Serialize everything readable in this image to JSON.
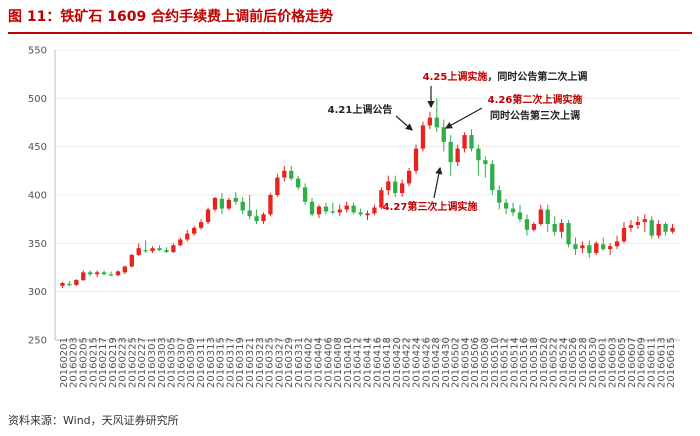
{
  "figure": {
    "title": "图 11：铁矿石 1609 合约手续费上调前后价格走势",
    "source": "资料来源：Wind，天风证券研究所"
  },
  "colors": {
    "up": "#e8221c",
    "down": "#2fae4a",
    "title": "#c00000",
    "annotation_red": "#c00000",
    "annotation_black": "#222222",
    "axis": "#d9d9d9"
  },
  "chart_data": {
    "type": "candlestick",
    "title": "铁矿石 1609 合约手续费上调前后价格走势",
    "ylim": [
      250,
      550
    ],
    "yticks": [
      250,
      300,
      350,
      400,
      450,
      500,
      550
    ],
    "xtick_labels": [
      "20160201",
      "20160203",
      "20160205",
      "20160215",
      "20160217",
      "20160219",
      "20160223",
      "20160225",
      "20160227",
      "20160301",
      "20160303",
      "20160305",
      "20160307",
      "20160309",
      "20160311",
      "20160313",
      "20160315",
      "20160317",
      "20160319",
      "20160321",
      "20160323",
      "20160325",
      "20160327",
      "20160329",
      "20160331",
      "20160402",
      "20160404",
      "20160406",
      "20160408",
      "20160410",
      "20160412",
      "20160414",
      "20160416",
      "20160418",
      "20160420",
      "20160422",
      "20160424",
      "20160426",
      "20160428",
      "20160430",
      "20160502",
      "20160504",
      "20160506",
      "20160508",
      "20160510",
      "20160512",
      "20160514",
      "20160516",
      "20160518",
      "20160520",
      "20160522",
      "20160524",
      "20160526",
      "20160528",
      "20160530",
      "20160601",
      "20160603",
      "20160605",
      "20160607",
      "20160609",
      "20160611",
      "20160613",
      "20160615"
    ],
    "ohlc": [
      [
        306,
        310,
        304,
        309
      ],
      [
        308,
        311,
        306,
        307
      ],
      [
        307,
        313,
        306,
        312
      ],
      [
        312,
        322,
        311,
        320
      ],
      [
        320,
        322,
        316,
        318
      ],
      [
        318,
        322,
        315,
        320
      ],
      [
        320,
        322,
        317,
        318
      ],
      [
        318,
        321,
        316,
        317
      ],
      [
        317,
        322,
        316,
        321
      ],
      [
        320,
        327,
        318,
        326
      ],
      [
        326,
        339,
        325,
        338
      ],
      [
        338,
        350,
        337,
        345
      ],
      [
        343,
        353,
        340,
        342
      ],
      [
        342,
        347,
        340,
        345
      ],
      [
        345,
        348,
        342,
        343
      ],
      [
        343,
        346,
        340,
        341
      ],
      [
        341,
        350,
        340,
        348
      ],
      [
        348,
        356,
        347,
        354
      ],
      [
        354,
        364,
        352,
        360
      ],
      [
        360,
        368,
        358,
        366
      ],
      [
        366,
        375,
        364,
        372
      ],
      [
        372,
        387,
        370,
        385
      ],
      [
        385,
        398,
        383,
        397
      ],
      [
        396,
        402,
        380,
        386
      ],
      [
        386,
        397,
        384,
        395
      ],
      [
        397,
        403,
        390,
        393
      ],
      [
        393,
        398,
        380,
        384
      ],
      [
        384,
        400,
        375,
        378
      ],
      [
        378,
        385,
        370,
        373
      ],
      [
        373,
        382,
        370,
        380
      ],
      [
        380,
        402,
        378,
        400
      ],
      [
        400,
        422,
        398,
        418
      ],
      [
        418,
        430,
        414,
        425
      ],
      [
        425,
        430,
        415,
        417
      ],
      [
        417,
        420,
        405,
        408
      ],
      [
        408,
        412,
        390,
        393
      ],
      [
        393,
        397,
        378,
        380
      ],
      [
        380,
        390,
        376,
        388
      ],
      [
        388,
        392,
        380,
        383
      ],
      [
        383,
        392,
        380,
        382
      ],
      [
        382,
        390,
        378,
        385
      ],
      [
        385,
        393,
        382,
        389
      ],
      [
        389,
        392,
        380,
        382
      ],
      [
        382,
        386,
        378,
        380
      ],
      [
        379,
        384,
        374,
        381
      ],
      [
        381,
        390,
        379,
        387
      ],
      [
        387,
        408,
        385,
        405
      ],
      [
        405,
        420,
        400,
        414
      ],
      [
        414,
        420,
        398,
        402
      ],
      [
        402,
        416,
        398,
        412
      ],
      [
        412,
        428,
        409,
        425
      ],
      [
        425,
        452,
        422,
        448
      ],
      [
        448,
        476,
        445,
        472
      ],
      [
        472,
        486,
        468,
        480
      ],
      [
        480,
        500,
        465,
        470
      ],
      [
        470,
        478,
        445,
        455
      ],
      [
        455,
        462,
        420,
        434
      ],
      [
        434,
        452,
        430,
        448
      ],
      [
        448,
        465,
        444,
        462
      ],
      [
        462,
        468,
        445,
        448
      ],
      [
        448,
        452,
        420,
        436
      ],
      [
        436,
        440,
        418,
        432
      ],
      [
        432,
        436,
        400,
        405
      ],
      [
        405,
        410,
        385,
        392
      ],
      [
        392,
        396,
        380,
        386
      ],
      [
        386,
        392,
        378,
        382
      ],
      [
        382,
        390,
        372,
        375
      ],
      [
        375,
        380,
        358,
        364
      ],
      [
        364,
        372,
        362,
        370
      ],
      [
        370,
        390,
        368,
        385
      ],
      [
        385,
        390,
        362,
        370
      ],
      [
        370,
        378,
        358,
        362
      ],
      [
        362,
        375,
        355,
        371
      ],
      [
        371,
        374,
        346,
        349
      ],
      [
        349,
        356,
        338,
        344
      ],
      [
        345,
        352,
        340,
        348
      ],
      [
        348,
        353,
        335,
        340
      ],
      [
        340,
        352,
        338,
        350
      ],
      [
        349,
        356,
        342,
        344
      ],
      [
        344,
        350,
        338,
        347
      ],
      [
        347,
        358,
        344,
        352
      ],
      [
        352,
        372,
        350,
        366
      ],
      [
        366,
        374,
        362,
        369
      ],
      [
        369,
        378,
        365,
        372
      ],
      [
        372,
        380,
        362,
        375
      ],
      [
        374,
        378,
        355,
        358
      ],
      [
        358,
        374,
        355,
        370
      ],
      [
        370,
        372,
        358,
        362
      ],
      [
        362,
        370,
        360,
        366
      ]
    ],
    "annotations": [
      {
        "text": "4.21上调公告",
        "color": "annotation_black",
        "arrow": "down-right"
      },
      {
        "text": "4.25上调实施，同时公告第二次上调",
        "color_split": [
          "4.25上调实施",
          "，同时公告第二次上调"
        ],
        "arrow": "down"
      },
      {
        "text": "4.26第二次上调实施，同时公告第三次上调",
        "color_split": [
          "4.26第二次上调实施",
          "，同时公告第三次上调"
        ],
        "arrow": "down-left"
      },
      {
        "text": "4.27第三次上调实施",
        "color": "annotation_red",
        "arrow": "up"
      }
    ]
  }
}
